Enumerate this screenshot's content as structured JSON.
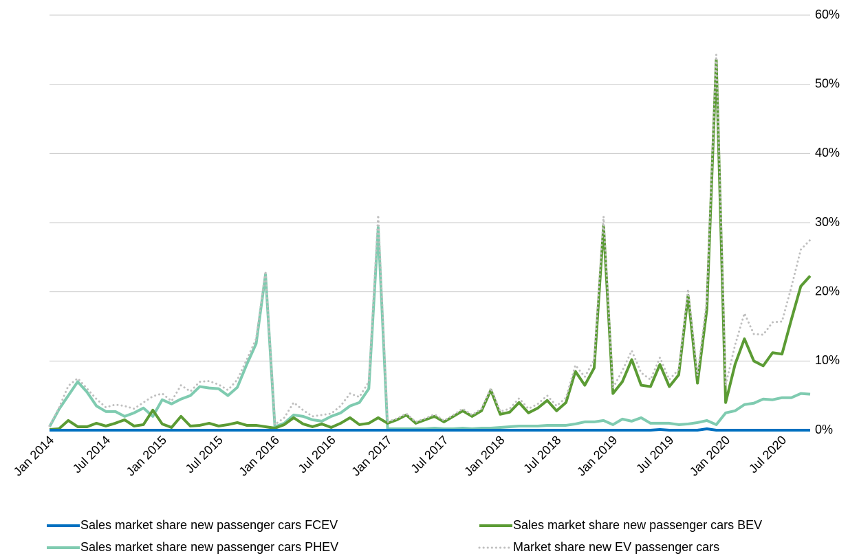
{
  "chart_data": {
    "type": "line",
    "categories": [
      "Jan 2014",
      null,
      null,
      null,
      null,
      null,
      "Jul 2014",
      null,
      null,
      null,
      null,
      null,
      "Jan 2015",
      null,
      null,
      null,
      null,
      null,
      "Jul 2015",
      null,
      null,
      null,
      null,
      null,
      "Jan 2016",
      null,
      null,
      null,
      null,
      null,
      "Jul 2016",
      null,
      null,
      null,
      null,
      null,
      "Jan 2017",
      null,
      null,
      null,
      null,
      null,
      "Jul 2017",
      null,
      null,
      null,
      null,
      null,
      "Jan 2018",
      null,
      null,
      null,
      null,
      null,
      "Jul 2018",
      null,
      null,
      null,
      null,
      null,
      "Jan 2019",
      null,
      null,
      null,
      null,
      null,
      "Jul 2019",
      null,
      null,
      null,
      null,
      null,
      "Jan 2020",
      null,
      null,
      null,
      null,
      null,
      "Jul 2020",
      null,
      null,
      null
    ],
    "series": [
      {
        "name": "Sales market share new passenger cars FCEV",
        "color": "#0070c0",
        "style": "solid",
        "values": [
          0,
          0,
          0,
          0,
          0,
          0,
          0,
          0,
          0,
          0,
          0,
          0,
          0,
          0,
          0,
          0,
          0,
          0,
          0,
          0,
          0,
          0,
          0,
          0,
          0,
          0,
          0,
          0,
          0,
          0,
          0,
          0,
          0,
          0,
          0,
          0,
          0,
          0,
          0,
          0,
          0,
          0,
          0,
          0,
          0,
          0,
          0,
          0,
          0,
          0,
          0,
          0,
          0,
          0,
          0,
          0,
          0,
          0,
          0,
          0,
          0,
          0,
          0,
          0,
          0,
          0.1,
          0,
          0,
          0,
          0,
          0.2,
          0,
          0,
          0,
          0,
          0,
          0,
          0,
          0,
          0,
          0,
          0
        ]
      },
      {
        "name": "Sales market share new passenger cars BEV",
        "color": "#5b9b34",
        "style": "solid",
        "values": [
          0.1,
          0.2,
          1.4,
          0.5,
          0.5,
          1.0,
          0.6,
          1.0,
          1.5,
          0.6,
          0.8,
          2.9,
          0.9,
          0.4,
          2.0,
          0.6,
          0.7,
          1.0,
          0.6,
          0.8,
          1.1,
          0.7,
          0.7,
          0.5,
          0.3,
          0.8,
          1.8,
          0.9,
          0.5,
          0.9,
          0.4,
          1.0,
          1.8,
          0.8,
          1.0,
          1.8,
          1.0,
          1.5,
          2.2,
          1.0,
          1.5,
          2.0,
          1.2,
          2.0,
          2.8,
          2.0,
          2.8,
          5.8,
          2.3,
          2.6,
          4.0,
          2.5,
          3.2,
          4.3,
          2.8,
          4.0,
          8.5,
          6.5,
          9.0,
          29.5,
          5.3,
          7.0,
          10.2,
          6.5,
          6.3,
          9.5,
          6.3,
          8.0,
          19.5,
          6.8,
          17.5,
          53.5,
          4.0,
          9.5,
          13.2,
          10.0,
          9.3,
          11.2,
          11.0,
          16.0,
          20.8,
          22.3
        ]
      },
      {
        "name": "Sales market share new passenger cars PHEV",
        "color": "#7fcbb0",
        "style": "solid",
        "values": [
          0.5,
          3.0,
          5.0,
          7.0,
          5.5,
          3.5,
          2.7,
          2.7,
          2.0,
          2.5,
          3.2,
          2.0,
          4.4,
          3.8,
          4.5,
          5.0,
          6.3,
          6.1,
          6.0,
          5.0,
          6.2,
          9.5,
          12.5,
          22.5,
          0.5,
          1.0,
          2.2,
          2.0,
          1.5,
          1.3,
          2.0,
          2.5,
          3.5,
          4.0,
          6.0,
          29.3,
          0.2,
          0.2,
          0.2,
          0.2,
          0.2,
          0.3,
          0.2,
          0.2,
          0.3,
          0.2,
          0.3,
          0.3,
          0.4,
          0.5,
          0.6,
          0.6,
          0.6,
          0.7,
          0.7,
          0.7,
          0.9,
          1.2,
          1.2,
          1.4,
          0.8,
          1.6,
          1.3,
          1.8,
          1.0,
          1.0,
          1.0,
          0.8,
          0.9,
          1.1,
          1.4,
          0.8,
          2.5,
          2.8,
          3.7,
          3.9,
          4.5,
          4.4,
          4.7,
          4.7,
          5.3,
          5.2
        ]
      },
      {
        "name": "Market share new EV passenger cars",
        "color": "#bfbfbf",
        "style": "dotted",
        "values": [
          0.6,
          3.2,
          6.4,
          7.5,
          6.0,
          4.5,
          3.3,
          3.7,
          3.5,
          3.1,
          4.0,
          4.9,
          5.3,
          4.2,
          6.5,
          5.6,
          7.0,
          7.1,
          6.6,
          5.8,
          7.3,
          10.2,
          13.2,
          23.0,
          0.8,
          1.8,
          4.0,
          2.9,
          2.0,
          2.2,
          2.4,
          3.5,
          5.3,
          4.8,
          7.0,
          31.1,
          1.2,
          1.7,
          2.4,
          1.2,
          1.7,
          2.3,
          1.4,
          2.2,
          3.1,
          2.2,
          3.1,
          6.1,
          2.7,
          3.1,
          4.6,
          3.1,
          3.8,
          5.0,
          3.5,
          4.7,
          9.4,
          7.7,
          10.2,
          30.9,
          6.1,
          8.6,
          11.5,
          8.3,
          7.3,
          10.5,
          7.3,
          8.8,
          20.4,
          7.9,
          18.9,
          54.3,
          6.5,
          12.3,
          16.9,
          13.9,
          13.8,
          15.6,
          15.7,
          20.7,
          26.1,
          27.5
        ]
      }
    ],
    "ylim": [
      0,
      60
    ],
    "yticks": [
      {
        "value": 0,
        "label": "0%"
      },
      {
        "value": 10,
        "label": "10%"
      },
      {
        "value": 20,
        "label": "20%"
      },
      {
        "value": 30,
        "label": "30%"
      },
      {
        "value": 40,
        "label": "40%"
      },
      {
        "value": 50,
        "label": "50%"
      },
      {
        "value": 60,
        "label": "60%"
      }
    ],
    "grid": true,
    "y_axis_side": "right",
    "legend": "bottom"
  }
}
